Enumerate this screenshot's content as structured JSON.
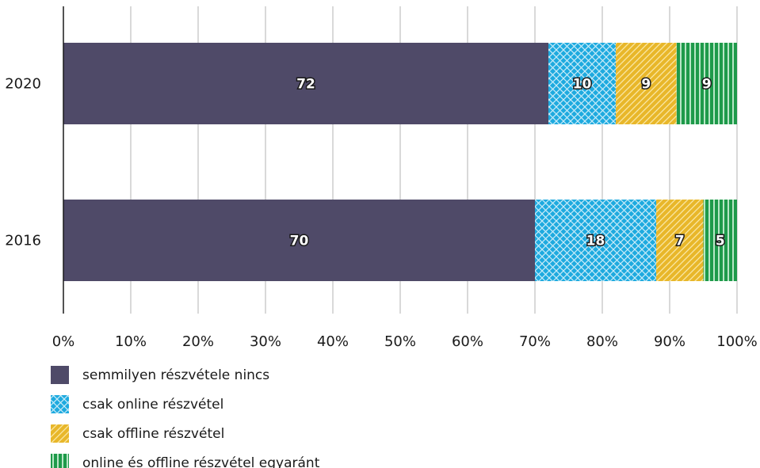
{
  "chart_data": {
    "type": "bar",
    "orientation": "horizontal",
    "stacked": true,
    "categories": [
      "2020",
      "2016"
    ],
    "series": [
      {
        "name": "semmilyen részvétele nincs",
        "values": [
          72,
          70
        ],
        "color": "#4f4a68",
        "pattern": "solid"
      },
      {
        "name": "csak online részvétel",
        "values": [
          10,
          18
        ],
        "color": "#1eaadf",
        "pattern": "crosshatch"
      },
      {
        "name": "csak offline részvétel",
        "values": [
          9,
          7
        ],
        "color": "#e8b72a",
        "pattern": "diagonal"
      },
      {
        "name": "online és offline részvétel egyaránt",
        "values": [
          9,
          5
        ],
        "color": "#1e9a4a",
        "pattern": "vertical"
      }
    ],
    "bar_labels": [
      [
        "72",
        "10",
        "9",
        "9"
      ],
      [
        "70",
        "18",
        "7",
        "5"
      ]
    ],
    "xlim": [
      0,
      100
    ],
    "x_ticks": [
      "0%",
      "10%",
      "20%",
      "30%",
      "40%",
      "50%",
      "60%",
      "70%",
      "80%",
      "90%",
      "100%"
    ],
    "grid": "vertical",
    "legend_position": "bottom-left"
  }
}
